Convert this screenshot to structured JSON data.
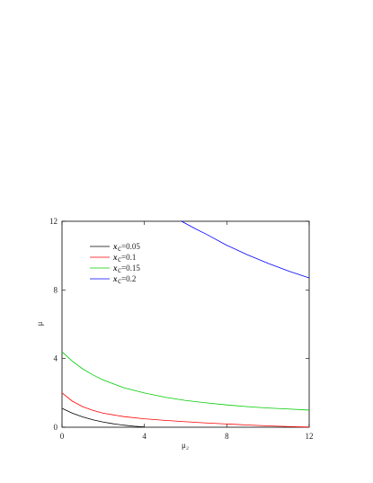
{
  "chart_data": {
    "type": "line",
    "xlabel": "μ₂",
    "ylabel": "μ",
    "xlim": [
      0,
      12
    ],
    "ylim": [
      0,
      12
    ],
    "xticks": [
      0,
      4,
      8,
      12
    ],
    "yticks": [
      0,
      4,
      8,
      12
    ],
    "grid": false,
    "legend_position": "top-left",
    "series": [
      {
        "name": "x_c=0.05",
        "legend_label": "=0.05",
        "color": "#000000",
        "x": [
          0,
          0.5,
          1,
          1.5,
          2,
          2.5,
          3,
          3.5,
          4
        ],
        "y": [
          1.1,
          0.82,
          0.6,
          0.43,
          0.3,
          0.2,
          0.12,
          0.06,
          0.02
        ]
      },
      {
        "name": "x_c=0.1",
        "legend_label": "=0.1",
        "color": "#ff0000",
        "x": [
          0,
          0.5,
          1,
          1.5,
          2,
          3,
          4,
          5,
          6,
          7,
          8,
          9,
          10,
          11,
          12
        ],
        "y": [
          2.0,
          1.52,
          1.2,
          0.98,
          0.82,
          0.62,
          0.49,
          0.4,
          0.32,
          0.25,
          0.19,
          0.13,
          0.08,
          0.04,
          0.01
        ]
      },
      {
        "name": "x_c=0.15",
        "legend_label": "=0.15",
        "color": "#00cc00",
        "x": [
          0,
          0.5,
          1,
          1.5,
          2,
          3,
          4,
          5,
          6,
          7,
          8,
          9,
          10,
          11,
          12
        ],
        "y": [
          4.4,
          3.85,
          3.4,
          3.05,
          2.75,
          2.3,
          2.0,
          1.75,
          1.56,
          1.42,
          1.3,
          1.2,
          1.12,
          1.06,
          1.0
        ]
      },
      {
        "name": "x_c=0.2",
        "legend_label": "=0.2",
        "color": "#0000ff",
        "x": [
          5.8,
          6.5,
          7,
          8,
          9,
          10,
          11,
          12
        ],
        "y": [
          12.0,
          11.55,
          11.25,
          10.6,
          10.05,
          9.55,
          9.1,
          8.7
        ]
      }
    ]
  }
}
